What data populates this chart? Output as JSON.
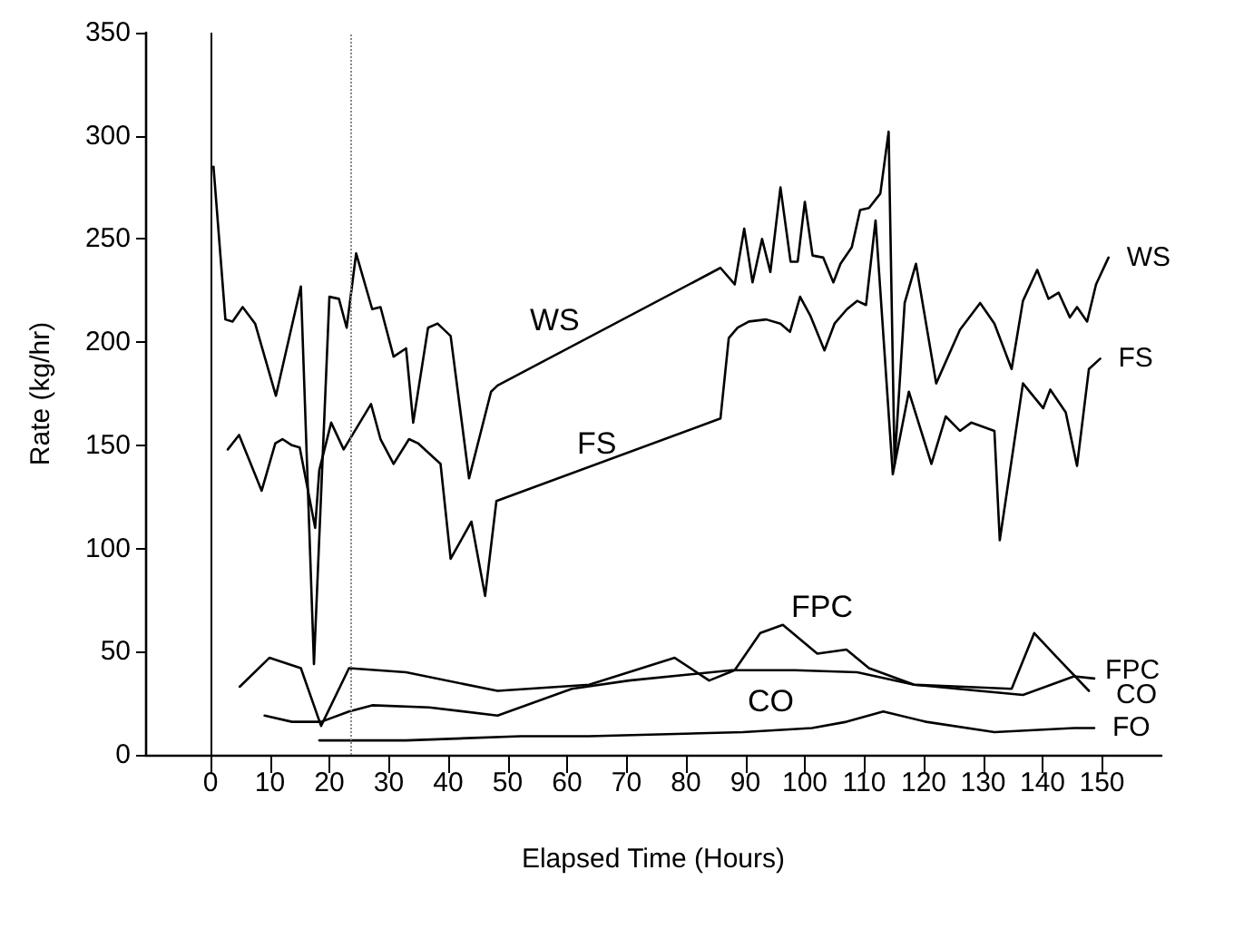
{
  "chart_data": {
    "type": "line",
    "xlabel": "Elapsed Time (Hours)",
    "ylabel": "Rate (kg/hr)",
    "xlim": [
      -11,
      160
    ],
    "xticks": [
      0,
      10,
      20,
      30,
      40,
      50,
      60,
      70,
      80,
      90,
      100,
      110,
      120,
      130,
      140,
      150
    ],
    "ylim": [
      0,
      350
    ],
    "yticks": [
      0,
      50,
      100,
      150,
      200,
      250,
      300,
      350
    ],
    "grid": false,
    "legend": false,
    "marker": "none",
    "line_style": "solid",
    "ref_lines": [
      {
        "axis": "x",
        "value": 0,
        "color": "#000000",
        "line_style": "solid"
      },
      {
        "axis": "x",
        "value": 23.5,
        "color": "#888888",
        "line_style": "dotted"
      }
    ],
    "annotations": [
      "WS",
      "FS",
      "FPC",
      "CO"
    ],
    "series": [
      {
        "name": "WS",
        "color": "#000000",
        "x": [
          0.5,
          2.5,
          3.7,
          5.4,
          7.5,
          11,
          15.2,
          17.4,
          20,
          21.6,
          22.9,
          24.5,
          27.2,
          28.6,
          30.8,
          32.9,
          34.1,
          36.6,
          38.2,
          40.4,
          43.5,
          47.2,
          48.3,
          85.8,
          88.2,
          89.8,
          91.2,
          92.8,
          94.2,
          95.9,
          97.6,
          98.8,
          100,
          101.3,
          103.1,
          104.8,
          106,
          107.9,
          109.3,
          110.8,
          112.7,
          114.1,
          115.1,
          116.8,
          118.7,
          122.1,
          126.1,
          129.5,
          131.9,
          134.8,
          136.7,
          139.1,
          141,
          142.7,
          144.6,
          145.8,
          147.5,
          149,
          151.1
        ],
        "values": [
          285,
          211,
          210,
          217,
          209,
          174,
          227,
          44,
          222,
          221,
          207,
          243,
          216,
          217,
          193,
          197,
          161,
          207,
          209,
          203,
          134,
          176,
          179,
          236,
          228,
          255,
          229,
          250,
          234,
          275,
          239,
          239,
          268,
          242,
          241,
          229,
          238,
          246,
          264,
          265,
          272,
          302,
          141,
          219,
          238,
          180,
          206,
          219,
          209,
          187,
          220,
          235,
          221,
          224,
          212,
          217,
          210,
          228,
          241
        ]
      },
      {
        "name": "FS",
        "color": "#000000",
        "x": [
          2.9,
          4.8,
          8.6,
          10.9,
          12.1,
          13.7,
          15,
          17.6,
          18.3,
          20.3,
          22.4,
          27,
          28.6,
          30.8,
          33.4,
          34.9,
          38.7,
          40.4,
          43.9,
          46.2,
          48.1,
          85.8,
          87.2,
          88.7,
          90.6,
          93.5,
          95.9,
          97.5,
          99.2,
          100.9,
          103.3,
          105,
          107.1,
          108.8,
          110.3,
          111.9,
          114.8,
          117.5,
          121.3,
          123.7,
          126.1,
          128,
          131.9,
          132.8,
          136.7,
          140.1,
          141.3,
          143.9,
          145.8,
          147.8,
          149.7
        ],
        "values": [
          148,
          155,
          128,
          151,
          153,
          150,
          149,
          110,
          138,
          161,
          148,
          170,
          153,
          141,
          153,
          151,
          141,
          95,
          113,
          77,
          123,
          163,
          202,
          207,
          210,
          211,
          209,
          205,
          222,
          213,
          196,
          209,
          216,
          220,
          218,
          259,
          136,
          176,
          141,
          164,
          157,
          161,
          157,
          104,
          180,
          168,
          177,
          166,
          140,
          187,
          192
        ]
      },
      {
        "name": "FPC",
        "color": "#000000",
        "x": [
          4.9,
          9.9,
          15.2,
          18.6,
          23.3,
          32.9,
          48.3,
          63.7,
          78.1,
          83.9,
          88.2,
          92.5,
          96.3,
          102.1,
          107,
          110.8,
          118.4,
          134.8,
          138.6,
          142.5,
          147.8
        ],
        "values": [
          33,
          47,
          42,
          14,
          42,
          40,
          31,
          34,
          47,
          36,
          41,
          59,
          63,
          49,
          51,
          42,
          34,
          32,
          59,
          47,
          31
        ]
      },
      {
        "name": "CO",
        "color": "#000000",
        "x": [
          9.1,
          13.7,
          18.6,
          23.3,
          27.2,
          36.8,
          48.3,
          60.8,
          70.4,
          87.7,
          98.3,
          108.8,
          118.4,
          136.7,
          145.3,
          148.7
        ],
        "values": [
          19,
          16,
          16,
          21,
          24,
          23,
          19,
          32,
          36,
          41,
          41,
          40,
          34,
          29,
          38,
          37
        ]
      },
      {
        "name": "FO",
        "color": "#000000",
        "x": [
          18.3,
          32.9,
          52.2,
          63.7,
          89.6,
          101.2,
          107,
          113.2,
          120.4,
          131.9,
          145.3,
          148.7
        ],
        "values": [
          7,
          7,
          9,
          9,
          11,
          13,
          16,
          21,
          16,
          11,
          13,
          13
        ]
      }
    ]
  }
}
